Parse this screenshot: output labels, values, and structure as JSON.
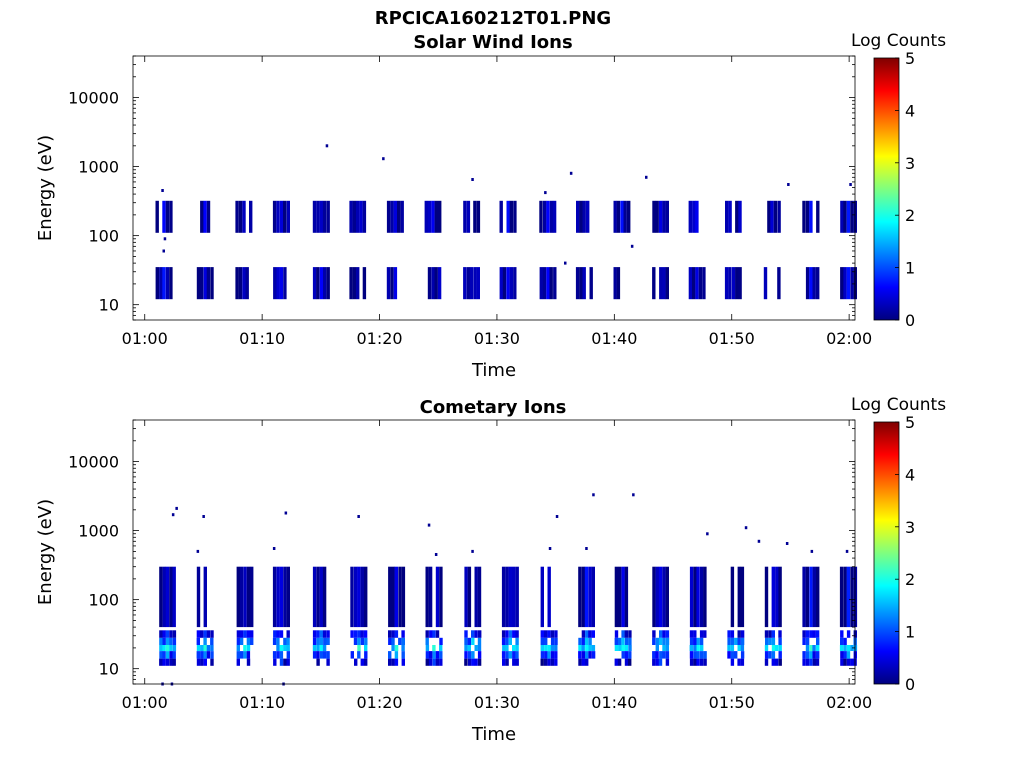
{
  "figure_title": "RPCICA160212T01.PNG",
  "colors": {
    "axis": "#000000",
    "background": "#ffffff"
  },
  "colormap": [
    "#00007f",
    "#0000ff",
    "#007fff",
    "#00ffff",
    "#7fff7f",
    "#ffff00",
    "#ff7f00",
    "#ff0000",
    "#7f0000"
  ],
  "chart_data": [
    {
      "type": "heatmap",
      "title": "Solar Wind Ions",
      "xlabel": "Time",
      "ylabel": "Energy (eV)",
      "x_ticks": [
        "01:00",
        "01:10",
        "01:20",
        "01:30",
        "01:40",
        "01:50",
        "02:00"
      ],
      "y_ticks": [
        "10",
        "100",
        "1000",
        "10000"
      ],
      "y_scale": "log",
      "xlim": [
        "01:00",
        "02:00"
      ],
      "ylim": [
        6,
        40000
      ],
      "colorbar": {
        "title": "Log Counts",
        "ticks": [
          "0",
          "1",
          "2",
          "3",
          "4",
          "5"
        ],
        "range": [
          0,
          5
        ]
      },
      "scan_times_min": [
        1.5,
        5.0,
        8.3,
        11.5,
        14.9,
        18.0,
        21.2,
        24.4,
        27.7,
        30.8,
        34.2,
        37.3,
        40.5,
        43.8,
        46.9,
        50.0,
        53.3,
        56.6,
        59.8
      ],
      "bands": [
        {
          "e_low": 12,
          "e_high": 35,
          "log_counts": 0.1
        },
        {
          "e_low": 110,
          "e_high": 320,
          "log_counts": 0.1
        }
      ],
      "scattered_points": [
        {
          "t": 15.5,
          "e": 2000,
          "log_counts": 0.1
        },
        {
          "t": 20.3,
          "e": 1300,
          "log_counts": 0.1
        },
        {
          "t": 27.9,
          "e": 650,
          "log_counts": 0.1
        },
        {
          "t": 34.1,
          "e": 420,
          "log_counts": 0.1
        },
        {
          "t": 36.3,
          "e": 800,
          "log_counts": 0.1
        },
        {
          "t": 42.7,
          "e": 700,
          "log_counts": 0.1
        },
        {
          "t": 54.8,
          "e": 550,
          "log_counts": 0.1
        },
        {
          "t": 60.1,
          "e": 550,
          "log_counts": 0.1
        },
        {
          "t": 1.5,
          "e": 450,
          "log_counts": 0.1
        },
        {
          "t": 1.7,
          "e": 90,
          "log_counts": 0.1
        },
        {
          "t": 1.6,
          "e": 60,
          "log_counts": 0.1
        },
        {
          "t": 41.5,
          "e": 70,
          "log_counts": 0.1
        },
        {
          "t": 35.8,
          "e": 40,
          "log_counts": 0.1
        }
      ]
    },
    {
      "type": "heatmap",
      "title": "Cometary Ions",
      "xlabel": "Time",
      "ylabel": "Energy (eV)",
      "x_ticks": [
        "01:00",
        "01:10",
        "01:20",
        "01:30",
        "01:40",
        "01:50",
        "02:00"
      ],
      "y_ticks": [
        "10",
        "100",
        "1000",
        "10000"
      ],
      "y_scale": "log",
      "xlim": [
        "01:00",
        "02:00"
      ],
      "ylim": [
        6,
        40000
      ],
      "colorbar": {
        "title": "Log Counts",
        "ticks": [
          "0",
          "1",
          "2",
          "3",
          "4",
          "5"
        ],
        "range": [
          0,
          5
        ]
      },
      "scan_times_min": [
        1.8,
        5.0,
        8.4,
        11.5,
        14.9,
        18.1,
        21.3,
        24.5,
        27.8,
        31.0,
        34.3,
        37.5,
        40.6,
        43.8,
        47.0,
        50.2,
        53.4,
        56.6,
        59.8
      ],
      "bands": [
        {
          "e_low": 11,
          "e_high": 14,
          "log_counts": 0.3
        },
        {
          "e_low": 14,
          "e_high": 18,
          "log_counts": 0.8
        },
        {
          "e_low": 18,
          "e_high": 22,
          "log_counts": 1.5
        },
        {
          "e_low": 22,
          "e_high": 28,
          "log_counts": 1.0
        },
        {
          "e_low": 28,
          "e_high": 36,
          "log_counts": 0.5
        },
        {
          "e_low": 40,
          "e_high": 300,
          "log_counts": 0.1
        }
      ],
      "scattered_points": [
        {
          "t": 2.4,
          "e": 1700,
          "log_counts": 0.1
        },
        {
          "t": 2.7,
          "e": 2100,
          "log_counts": 0.1
        },
        {
          "t": 5.0,
          "e": 1600,
          "log_counts": 0.1
        },
        {
          "t": 4.5,
          "e": 500,
          "log_counts": 0.1
        },
        {
          "t": 11.0,
          "e": 550,
          "log_counts": 0.1
        },
        {
          "t": 12.0,
          "e": 1800,
          "log_counts": 0.1
        },
        {
          "t": 18.2,
          "e": 1600,
          "log_counts": 0.1
        },
        {
          "t": 24.2,
          "e": 1200,
          "log_counts": 0.1
        },
        {
          "t": 35.1,
          "e": 1600,
          "log_counts": 0.1
        },
        {
          "t": 38.2,
          "e": 3300,
          "log_counts": 0.1
        },
        {
          "t": 41.6,
          "e": 3300,
          "log_counts": 0.1
        },
        {
          "t": 47.9,
          "e": 900,
          "log_counts": 0.1
        },
        {
          "t": 51.2,
          "e": 1100,
          "log_counts": 0.1
        },
        {
          "t": 52.3,
          "e": 700,
          "log_counts": 0.1
        },
        {
          "t": 54.7,
          "e": 650,
          "log_counts": 0.1
        },
        {
          "t": 56.8,
          "e": 500,
          "log_counts": 0.1
        },
        {
          "t": 59.8,
          "e": 500,
          "log_counts": 0.1
        },
        {
          "t": 24.8,
          "e": 450,
          "log_counts": 0.1
        },
        {
          "t": 27.9,
          "e": 500,
          "log_counts": 0.1
        },
        {
          "t": 34.5,
          "e": 550,
          "log_counts": 0.1
        },
        {
          "t": 37.6,
          "e": 550,
          "log_counts": 0.1
        },
        {
          "t": 1.5,
          "e": 6,
          "log_counts": 0.1
        },
        {
          "t": 2.3,
          "e": 6,
          "log_counts": 0.1
        },
        {
          "t": 11.8,
          "e": 6,
          "log_counts": 0.1
        }
      ]
    }
  ]
}
